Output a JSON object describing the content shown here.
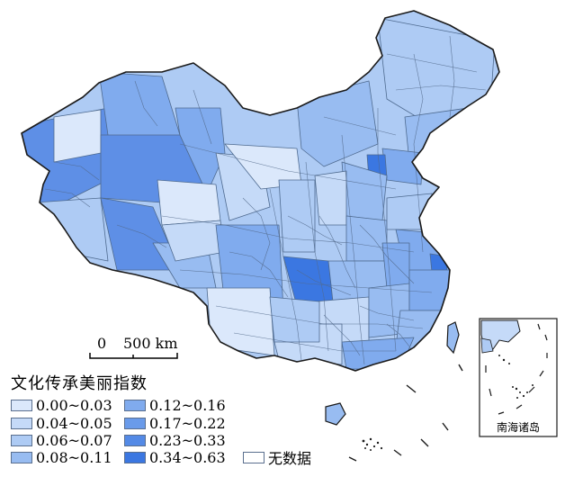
{
  "scale_bar": {
    "zero": "0",
    "distance": "500 km"
  },
  "legend": {
    "title": "文化传承美丽指数",
    "items": [
      {
        "label": "0.00~0.03",
        "color": "#dbe8fb"
      },
      {
        "label": "0.04~0.05",
        "color": "#c5daf8"
      },
      {
        "label": "0.06~0.07",
        "color": "#aecbf4"
      },
      {
        "label": "0.08~0.11",
        "color": "#98bcf1"
      },
      {
        "label": "0.12~0.16",
        "color": "#80abee"
      },
      {
        "label": "0.17~0.22",
        "color": "#6a9bea"
      },
      {
        "label": "0.23~0.33",
        "color": "#548ae6"
      },
      {
        "label": "0.34~0.63",
        "color": "#3b77e1"
      },
      {
        "label": "无数据",
        "color": "#ffffff"
      }
    ]
  },
  "inset": {
    "label": "南海诸岛"
  }
}
